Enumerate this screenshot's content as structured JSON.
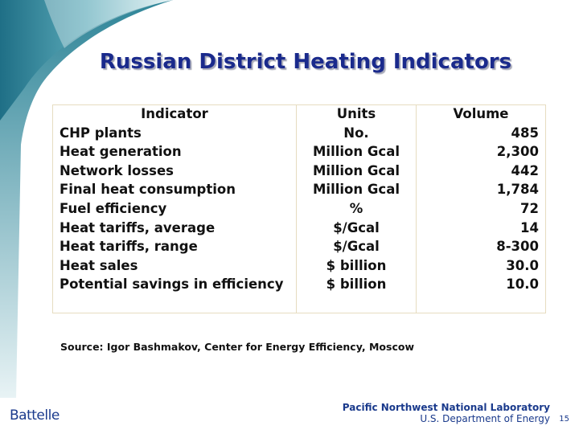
{
  "title": "Russian District Heating Indicators",
  "table": {
    "header": [
      "Indicator",
      "Units",
      "Volume"
    ],
    "rows": [
      [
        "CHP plants",
        "No.",
        "485"
      ],
      [
        "Heat generation",
        "Million Gcal",
        "2,300"
      ],
      [
        "Network losses",
        "Million Gcal",
        "442"
      ],
      [
        "Final heat consumption",
        "Million Gcal",
        "1,784"
      ],
      [
        "Fuel efficiency",
        "%",
        "72"
      ],
      [
        "Heat tariffs, average",
        "$/Gcal",
        "14"
      ],
      [
        "Heat tariffs, range",
        "$/Gcal",
        "8-300"
      ],
      [
        "Heat sales",
        "$ billion",
        "30.0"
      ],
      [
        "Potential savings in efficiency",
        "$ billion",
        "10.0"
      ]
    ]
  },
  "source": "Source: Igor Bashmakov, Center for Energy Efficiency, Moscow",
  "footer": {
    "logo": "Battelle",
    "lab": "Pacific Northwest National Laboratory",
    "department": "U.S. Department of Energy",
    "page": "15"
  }
}
